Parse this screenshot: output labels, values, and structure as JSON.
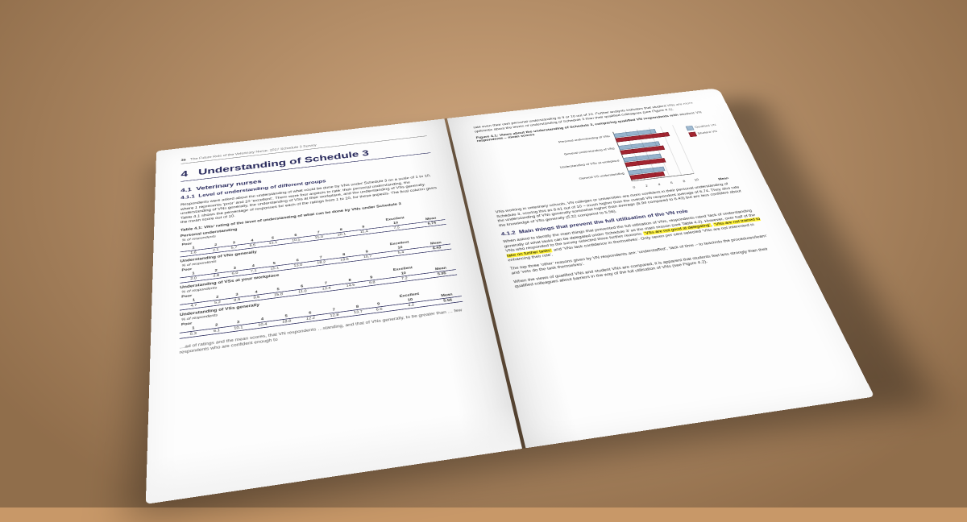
{
  "running_head": {
    "page_number": "36",
    "title": "The Future Role of the Veterinary Nurse: 2017 Schedule 3 Survey"
  },
  "chapter": {
    "number": "4",
    "title": "Understanding of Schedule 3"
  },
  "sec41": {
    "number": "4.1",
    "title": "Veterinary nurses"
  },
  "sec411": {
    "number": "4.1.1",
    "title": "Level of understanding of different groups"
  },
  "sec412": {
    "number": "4.1.2",
    "title": "Main things that prevent the full utilisation of the VN role"
  },
  "para_intro": "Respondents were asked about the understanding of what could be done by VNs under Schedule 3 on a scale of 1 to 10, where 1 represents ‘poor’ and 10 ‘excellent’. There were four aspects to rate: their personal understanding, the understanding of VNs generally, the understanding of VSs at their workplace, and the understanding of VSs generally. Table 4.1 shows the percentage of responses for each of the ratings from 1 to 10, for these aspects. The final column gives the mean score out of 10.",
  "table41_title": "Table 4.1: VNs’ rating of the level of understanding of what can be done by VNs under Schedule 3",
  "dist_header": {
    "poor": "Poor",
    "excellent": "Excellent",
    "mean": "Mean",
    "r1": "1",
    "r2": "2",
    "r3": "3",
    "r4": "4",
    "r5": "5",
    "r6": "6",
    "r7": "7",
    "r8": "8",
    "r9": "9",
    "r10": "10",
    "pct_label": "% of respondents"
  },
  "measures": {
    "personal": {
      "label": "Personal understanding",
      "pct": [
        "1.6",
        "2.1",
        "5.7",
        "5.5",
        "12.1",
        "10.5",
        "15.0",
        "20.1",
        "11.4",
        "7.5"
      ],
      "mean": "6.74"
    },
    "vns": {
      "label": "Understanding of VNs generally",
      "pct": [
        "2.0",
        "2.8",
        "6.0",
        "7.1",
        "15.1",
        "13.0",
        "18.2",
        "19.6",
        "10.7",
        "5.4"
      ],
      "mean": "6.43"
    },
    "workplace": {
      "label": "Understanding of VSs at your workplace",
      "pct": [
        "4.7",
        "5.2",
        "8.9",
        "9.6",
        "15.8",
        "11.0",
        "13.4",
        "14.6",
        "9.8",
        "7.2"
      ],
      "mean": "5.95"
    },
    "vss": {
      "label": "Understanding of VSs generally",
      "pct": [
        "5.3",
        "6.1",
        "10.1",
        "10.4",
        "18.8",
        "12.2",
        "12.8",
        "13.7",
        "6.6",
        "4.2"
      ],
      "mean": "5.56"
    }
  },
  "left_trailing": "…ad of ratings and the mean scores, that VN respondents …standing, and that of VNs generally, to be greater than … few respondents who are confident enough to",
  "right_lead": "rate even their own personal understanding at 9 or 10 out of 10. Further analysis indicates that student VNs are more optimistic about the levels of understanding of Schedule 3 than their qualified colleagues (see Figure 4.1).",
  "fig41_title": "Figure 4.1: Views about the understanding of Schedule 3, comparing qualified VN respondents with student VN respondents – mean scores",
  "chart": {
    "type": "bar-horizontal-grouped",
    "x_title": "Mean",
    "xlim": [
      0,
      10
    ],
    "xticks": [
      "0",
      "2",
      "4",
      "6",
      "8",
      "10"
    ],
    "categories": [
      "Personal understanding of VNs",
      "General understanding of VNs",
      "Understanding of VSs at workplace",
      "General VS understanding"
    ],
    "series": {
      "qualified": {
        "label": "Qualified VN",
        "color": "#96b3cc",
        "border": "#6c8aa5",
        "values": [
          6.74,
          6.43,
          5.95,
          5.56
        ]
      },
      "student": {
        "label": "Student VN",
        "color": "#a22430",
        "border": "#7d1a24",
        "values": [
          8.61,
          6.94,
          6.2,
          5.22
        ]
      }
    }
  },
  "right_body1": "VNs working in veterinary schools, VN colleges or universities are more confident in their personal understanding of Schedule 3, scoring this as 8.61 out of 10 – much higher than the overall VN respondent average of 6.74. They also rate the understanding of VNs generally somewhat higher than average (6.94 compared to 6.43) but are less confident about the knowledge of VSs generally (5.22 compared to 5.56).",
  "right_body2_pre": "When asked to identify the main things that prevented the full utilisation of VNs, respondents rated ‘lack of understanding generally of what tasks can be delegated under Schedule 3’ as the main reason (see Table 4.2). However, over half of the VNs who responded to the survey selected three further reasons: ",
  "right_hl1": "‘VSs are not good at delegating’",
  "right_body2_mid": ", ",
  "right_hl2": "‘VNs are not trained to take on further tasks’",
  "right_body2_post": " and ‘VNs lack confidence in themselves’. Only seven per cent selected ‘VNs are not interested in enhancing their role’.",
  "right_body3": "The top three ‘other’ reasons given by VN respondents are: ‘understaffed’, ‘lack of time – to teach/do the procedures/learn’ and ‘vets do the task themselves’.",
  "right_body4": "When the views of qualified VNs and student VNs are compared, it is apparent that students feel less strongly than their qualified colleagues about barriers in the way of the full utilisation of VNs (see Figure 4.2)."
}
